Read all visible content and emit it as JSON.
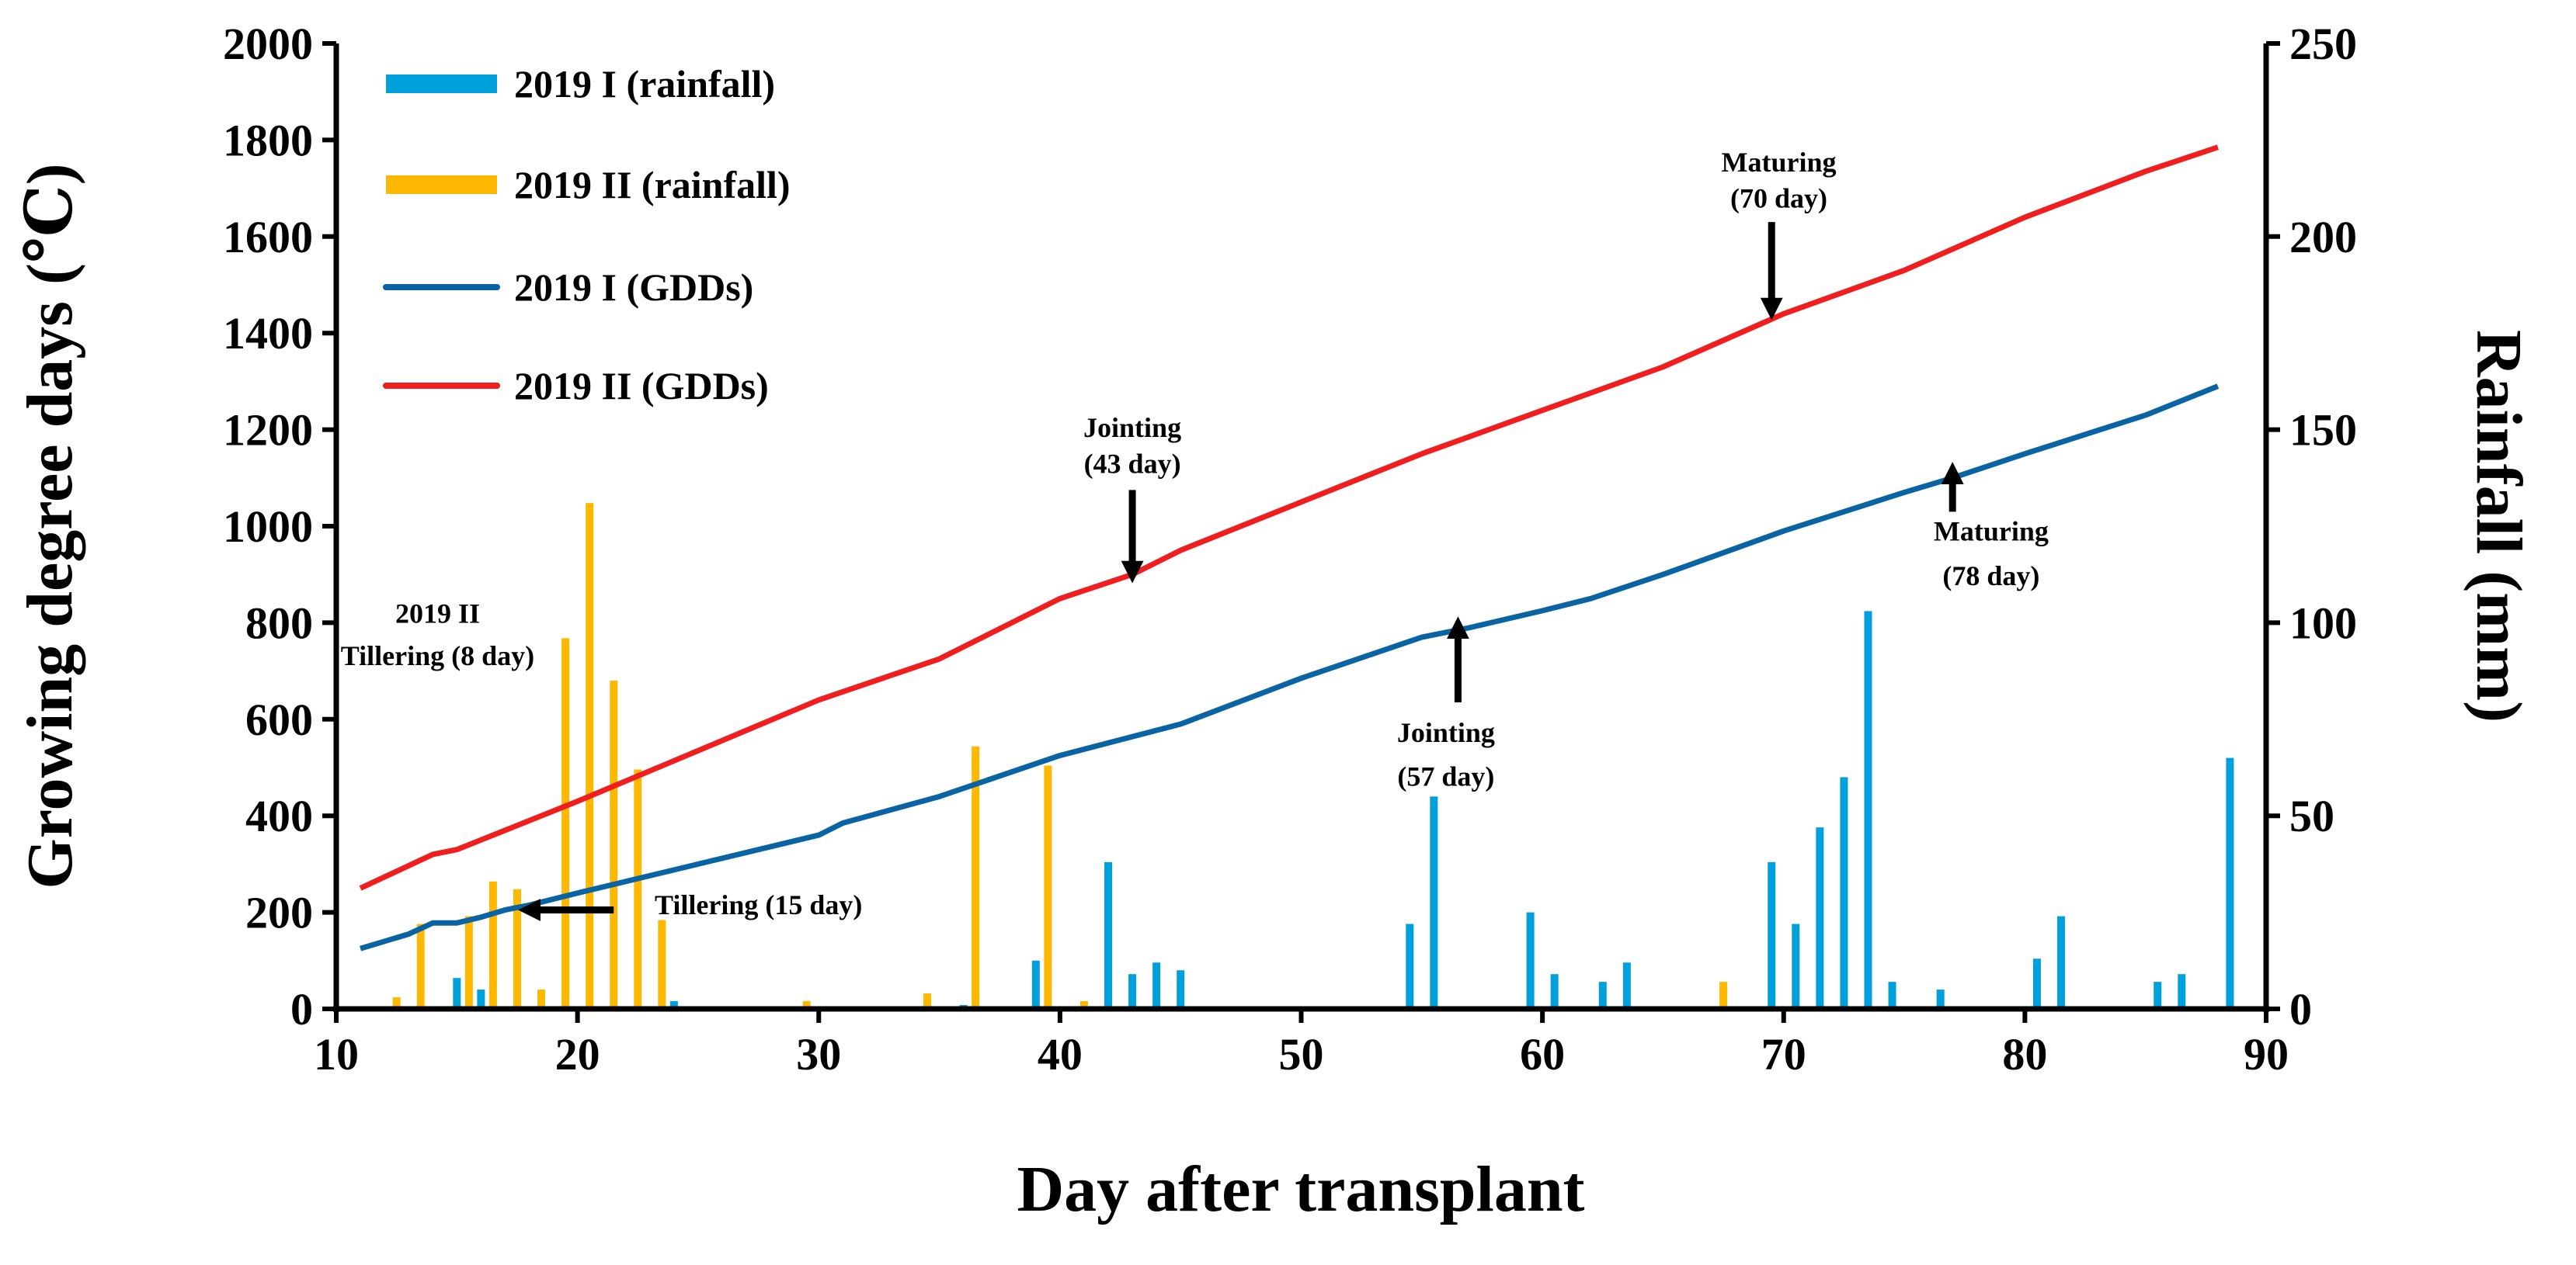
{
  "chart_data": {
    "type": "bar+line",
    "title": "",
    "xlabel": "Day after transplant",
    "ylabel_left": "Growing degree days (℃)",
    "ylabel_right": "Rainfall (mm)",
    "xlim": [
      10,
      90
    ],
    "ylim_left": [
      0,
      2000
    ],
    "ylim_right": [
      0,
      250
    ],
    "x_ticks": [
      "10",
      "20",
      "30",
      "40",
      "50",
      "60",
      "70",
      "80",
      "90"
    ],
    "y_left_ticks": [
      "0",
      "200",
      "400",
      "600",
      "800",
      "1000",
      "1200",
      "1400",
      "1600",
      "1800",
      "2000"
    ],
    "y_right_ticks": [
      "0",
      "50",
      "100",
      "150",
      "200",
      "250"
    ],
    "grid": false,
    "legend_position": "top-left",
    "colors": {
      "rain_I": "#00a0dc",
      "rain_II": "#ffb800",
      "gdd_I": "#0a64a4",
      "gdd_II": "#f01e1e"
    },
    "legend": [
      {
        "label": "2019 I (rainfall)",
        "kind": "bar",
        "color": "#00a0dc"
      },
      {
        "label": "2019 II (rainfall)",
        "kind": "bar",
        "color": "#ffb800"
      },
      {
        "label": "2019 I (GDDs)",
        "kind": "line",
        "color": "#0a64a4"
      },
      {
        "label": "2019 II (GDDs)",
        "kind": "line",
        "color": "#f01e1e"
      }
    ],
    "rainfall_2019_I": [
      [
        15,
        8
      ],
      [
        16,
        5
      ],
      [
        24,
        2
      ],
      [
        36,
        1
      ],
      [
        39,
        12.5
      ],
      [
        42,
        38
      ],
      [
        43,
        9
      ],
      [
        44,
        12
      ],
      [
        45,
        10
      ],
      [
        54.5,
        22
      ],
      [
        55.5,
        55
      ],
      [
        59.5,
        25
      ],
      [
        60.5,
        9
      ],
      [
        62.5,
        7
      ],
      [
        63.5,
        12
      ],
      [
        69.5,
        38
      ],
      [
        70.5,
        22
      ],
      [
        71.5,
        47
      ],
      [
        72.5,
        60
      ],
      [
        73.5,
        103
      ],
      [
        74.5,
        7
      ],
      [
        76.5,
        5
      ],
      [
        80.5,
        13
      ],
      [
        81.5,
        24
      ],
      [
        85.5,
        7
      ],
      [
        86.5,
        9
      ],
      [
        88.5,
        65
      ]
    ],
    "rainfall_2019_II": [
      [
        12.5,
        3
      ],
      [
        13.5,
        22
      ],
      [
        15.5,
        24
      ],
      [
        16.5,
        33
      ],
      [
        17.5,
        31
      ],
      [
        18.5,
        5
      ],
      [
        19.5,
        96
      ],
      [
        20.5,
        131
      ],
      [
        21.5,
        85
      ],
      [
        22.5,
        62
      ],
      [
        23.5,
        23
      ],
      [
        29.5,
        2
      ],
      [
        34.5,
        4
      ],
      [
        36.5,
        68
      ],
      [
        39.5,
        63
      ],
      [
        41,
        2
      ],
      [
        44,
        2
      ],
      [
        67.5,
        7
      ]
    ],
    "gdd_2019_I": [
      [
        11,
        125
      ],
      [
        12,
        140
      ],
      [
        13,
        155
      ],
      [
        14,
        178
      ],
      [
        15,
        178
      ],
      [
        16,
        190
      ],
      [
        17,
        205
      ],
      [
        18,
        215
      ],
      [
        20,
        240
      ],
      [
        25,
        300
      ],
      [
        30,
        360
      ],
      [
        31,
        385
      ],
      [
        35,
        440
      ],
      [
        40,
        525
      ],
      [
        45,
        590
      ],
      [
        50,
        685
      ],
      [
        55,
        770
      ],
      [
        57,
        790
      ],
      [
        60,
        825
      ],
      [
        62,
        850
      ],
      [
        65,
        900
      ],
      [
        70,
        990
      ],
      [
        75,
        1070
      ],
      [
        77,
        1100
      ],
      [
        80,
        1150
      ],
      [
        85,
        1230
      ],
      [
        88,
        1290
      ]
    ],
    "gdd_2019_II": [
      [
        11,
        250
      ],
      [
        14,
        320
      ],
      [
        15,
        330
      ],
      [
        17,
        370
      ],
      [
        20,
        430
      ],
      [
        25,
        535
      ],
      [
        30,
        640
      ],
      [
        35,
        725
      ],
      [
        40,
        850
      ],
      [
        43,
        900
      ],
      [
        45,
        950
      ],
      [
        50,
        1050
      ],
      [
        55,
        1150
      ],
      [
        60,
        1240
      ],
      [
        65,
        1330
      ],
      [
        70,
        1440
      ],
      [
        75,
        1530
      ],
      [
        80,
        1640
      ],
      [
        85,
        1735
      ],
      [
        88,
        1785
      ]
    ],
    "annotations": [
      {
        "lines": [
          "2019 II",
          "Tillering (8 day)"
        ],
        "x": 14.2,
        "y": [
          800,
          712
        ],
        "anchor": "middle"
      },
      {
        "lines": [
          "Tillering (15 day)"
        ],
        "x": 23.2,
        "y": [
          196
        ],
        "anchor": "start",
        "arrow": {
          "dir": "left",
          "from": [
            21.5,
            205
          ],
          "to": [
            18,
            205
          ]
        }
      },
      {
        "lines": [
          "Jointing",
          "(43 day)"
        ],
        "x": 43,
        "y": [
          1185,
          1110
        ],
        "anchor": "middle",
        "arrow": {
          "dir": "down",
          "from": [
            43,
            1075
          ],
          "to": [
            43,
            905
          ]
        }
      },
      {
        "lines": [
          "Maturing",
          "(70 day)"
        ],
        "x": 69.8,
        "y": [
          1735,
          1660
        ],
        "anchor": "middle",
        "arrow": {
          "dir": "down",
          "from": [
            69.5,
            1630
          ],
          "to": [
            69.5,
            1450
          ]
        }
      },
      {
        "lines": [
          "Jointing",
          "(57 day)"
        ],
        "x": 56,
        "y": [
          553,
          462
        ],
        "anchor": "middle",
        "arrow": {
          "dir": "up",
          "from": [
            56.5,
            635
          ],
          "to": [
            56.5,
            790
          ]
        }
      },
      {
        "lines": [
          "Maturing",
          "(78 day)"
        ],
        "x": 78.6,
        "y": [
          970,
          878
        ],
        "anchor": "middle",
        "arrow": {
          "dir": "up",
          "from": [
            77,
            1030
          ],
          "to": [
            77,
            1110
          ]
        }
      }
    ]
  }
}
